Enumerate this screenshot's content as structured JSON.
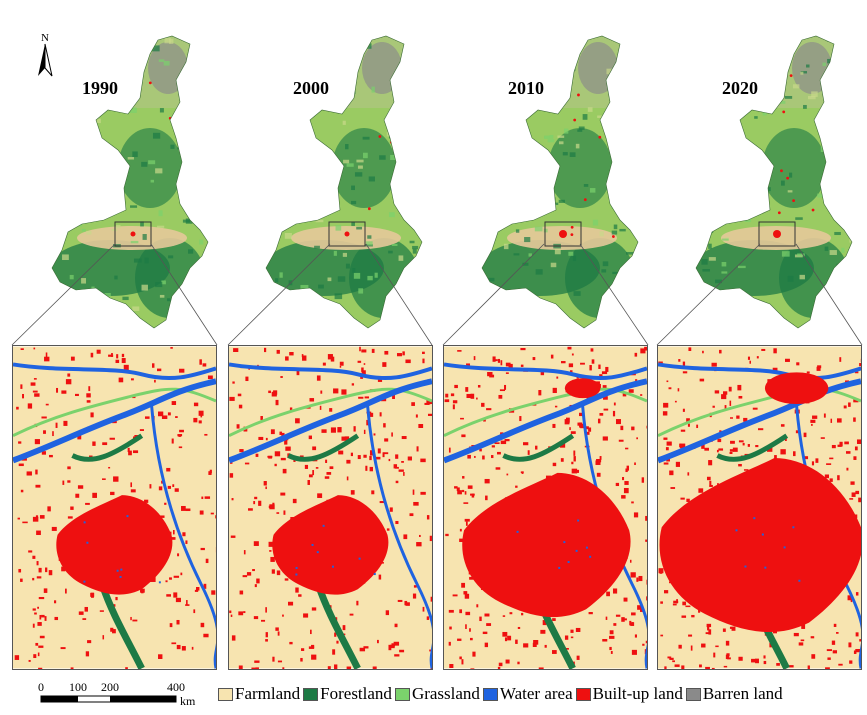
{
  "north_label": "N",
  "years": [
    "1990",
    "2000",
    "2010",
    "2020"
  ],
  "scale": {
    "ticks": [
      "0",
      "100",
      "200",
      "400"
    ],
    "unit": "km"
  },
  "legend": [
    {
      "label": "Farmland",
      "color": "#f7e4b0"
    },
    {
      "label": "Forestland",
      "color": "#1d7a45"
    },
    {
      "label": "Grassland",
      "color": "#7bd26c"
    },
    {
      "label": "Water area",
      "color": "#1f63e0"
    },
    {
      "label": "Built-up land",
      "color": "#ee1010"
    },
    {
      "label": "Barren land",
      "color": "#8a8a8a"
    }
  ],
  "builtup_scale": [
    1.0,
    1.0,
    1.45,
    1.75
  ]
}
